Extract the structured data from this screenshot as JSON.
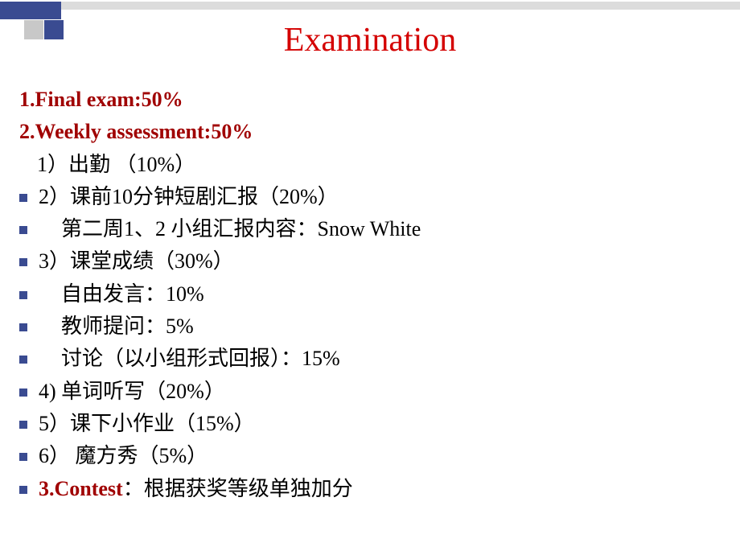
{
  "title": "Examination",
  "colors": {
    "title": "#d40000",
    "heading": "#a00000",
    "text": "#000000",
    "bullet": "#3a4b91",
    "band_light": "#dcdcdc",
    "band_dark": "#3a4b91",
    "box_light": "#c8c8c8"
  },
  "fontsize": {
    "title": 42,
    "body": 26
  },
  "lines": {
    "h1": "1.Final exam:50%",
    "h2": "2.Weekly assessment:50%",
    "i1": "1）出勤 （10%）",
    "i2": "2）课前10分钟短剧汇报（20%）",
    "i2a": "第二周1、2 小组汇报内容：Snow White",
    "i3": "3）课堂成绩（30%）",
    "i3a": "自由发言：10%",
    "i3b": "教师提问：5%",
    "i3c": "讨论（以小组形式回报）：15%",
    "i4": "4)  单词听写（20%）",
    "i5": "5）课下小作业（15%）",
    "i6": "6） 魔方秀（5%）",
    "h3a": "3.Contest",
    "h3b": "：根据获奖等级单独加分"
  }
}
